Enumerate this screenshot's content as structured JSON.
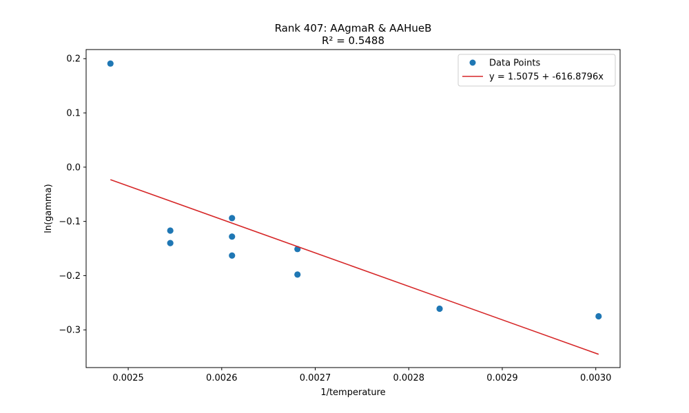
{
  "chart_data": {
    "type": "scatter",
    "title": "Rank 407: AAgmaR & AAHueB",
    "subtitle": "R² = 0.5488",
    "xlabel": "1/temperature",
    "ylabel": "ln(gamma)",
    "xlim": [
      0.002455,
      0.003026
    ],
    "ylim": [
      -0.3695,
      0.2168
    ],
    "x_ticks": [
      0.0025,
      0.0026,
      0.0027,
      0.0028,
      0.0029,
      0.003
    ],
    "x_tick_labels": [
      "0.0025",
      "0.0026",
      "0.0027",
      "0.0028",
      "0.0029",
      "0.0030"
    ],
    "y_ticks": [
      0.2,
      0.1,
      0.0,
      -0.1,
      -0.2,
      -0.3
    ],
    "y_tick_labels": [
      "0.2",
      "0.1",
      "0.0",
      "−0.1",
      "−0.2",
      "−0.3"
    ],
    "grid": false,
    "legend_position": "top-right",
    "series": [
      {
        "name": "Data Points",
        "kind": "scatter",
        "color": "#1f77b4",
        "points": [
          {
            "x": 0.002481,
            "y": 0.191
          },
          {
            "x": 0.002545,
            "y": -0.117
          },
          {
            "x": 0.002545,
            "y": -0.14
          },
          {
            "x": 0.002611,
            "y": -0.094
          },
          {
            "x": 0.002611,
            "y": -0.128
          },
          {
            "x": 0.002611,
            "y": -0.163
          },
          {
            "x": 0.002681,
            "y": -0.151
          },
          {
            "x": 0.002681,
            "y": -0.198
          },
          {
            "x": 0.002833,
            "y": -0.261
          },
          {
            "x": 0.003003,
            "y": -0.275
          }
        ]
      },
      {
        "name": "y = 1.5075 + -616.8796x",
        "kind": "line",
        "color": "#d62728",
        "intercept": 1.5075,
        "slope": -616.8796,
        "x_range": [
          0.002481,
          0.003003
        ]
      }
    ]
  }
}
